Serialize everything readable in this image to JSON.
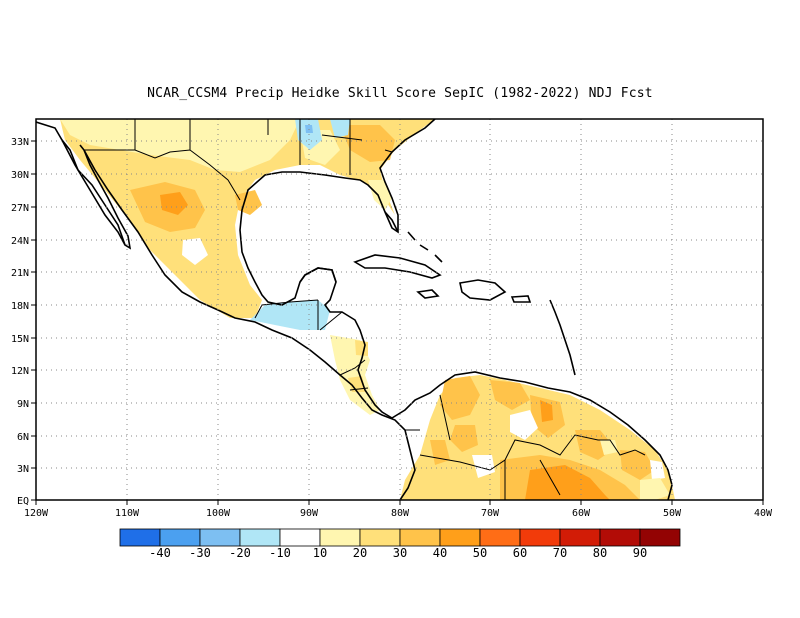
{
  "title": "NCAR_CCSM4 Precip Heidke Skill Score SepIC (1982-2022) NDJ Fcst",
  "lat_labels": [
    "33N",
    "30N",
    "27N",
    "24N",
    "21N",
    "18N",
    "15N",
    "12N",
    "9N",
    "6N",
    "3N",
    "EQ"
  ],
  "lon_labels": [
    "120W",
    "110W",
    "100W",
    "90W",
    "80W",
    "70W",
    "60W",
    "50W",
    "40W"
  ],
  "colorbar": {
    "colors": [
      "#1f6fe8",
      "#4ba0f0",
      "#7dbff2",
      "#b0e6f6",
      "#ffffff",
      "#fff6b0",
      "#ffe07a",
      "#ffc34a",
      "#ff9f1a",
      "#ff6d16",
      "#f23b0a",
      "#d21c06",
      "#b20c06",
      "#930303"
    ],
    "labels": [
      "-40",
      "-30",
      "-20",
      "-10",
      "10",
      "20",
      "30",
      "40",
      "50",
      "60",
      "70",
      "80",
      "90"
    ]
  }
}
